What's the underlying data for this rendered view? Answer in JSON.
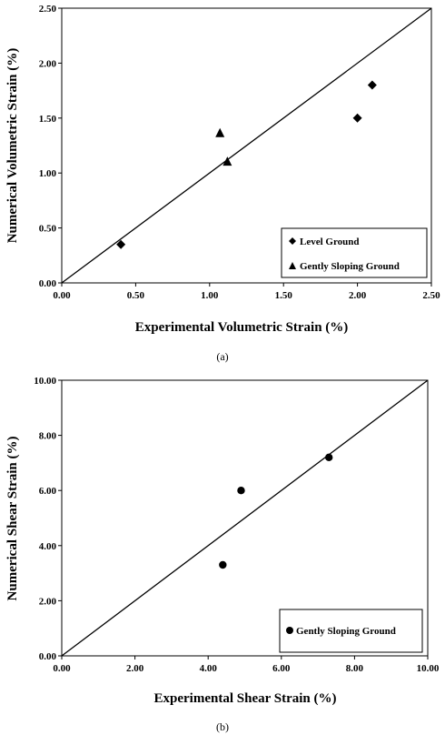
{
  "chart_data": [
    {
      "type": "scatter",
      "caption": "(a)",
      "xlabel": "Experimental Volumetric Strain (%)",
      "ylabel": "Numerical Volumetric Strain (%)",
      "xlim": [
        0,
        2.5
      ],
      "ylim": [
        0,
        2.5
      ],
      "x_ticks": [
        "0.00",
        "0.50",
        "1.00",
        "1.50",
        "2.00",
        "2.50"
      ],
      "y_ticks": [
        "0.00",
        "0.50",
        "1.00",
        "1.50",
        "2.00",
        "2.50"
      ],
      "tick_values": [
        0,
        0.5,
        1.0,
        1.5,
        2.0,
        2.5
      ],
      "reference_line": [
        [
          0,
          0
        ],
        [
          2.5,
          2.5
        ]
      ],
      "grid": false,
      "legend_position": "bottom-right",
      "series": [
        {
          "name": "Level Ground",
          "marker": "diamond",
          "points": [
            [
              0.4,
              0.35
            ],
            [
              2.0,
              1.5
            ],
            [
              2.1,
              1.8
            ]
          ]
        },
        {
          "name": "Gently Sloping Ground",
          "marker": "triangle",
          "points": [
            [
              1.07,
              1.36
            ],
            [
              1.12,
              1.1
            ]
          ]
        }
      ]
    },
    {
      "type": "scatter",
      "caption": "(b)",
      "xlabel": "Experimental Shear Strain (%)",
      "ylabel": "Numerical Shear Strain (%)",
      "xlim": [
        0,
        10
      ],
      "ylim": [
        0,
        10
      ],
      "x_ticks": [
        "0.00",
        "2.00",
        "4.00",
        "6.00",
        "8.00",
        "10.00"
      ],
      "y_ticks": [
        "0.00",
        "2.00",
        "4.00",
        "6.00",
        "8.00",
        "10.00"
      ],
      "tick_values": [
        0,
        2,
        4,
        6,
        8,
        10
      ],
      "reference_line": [
        [
          0,
          0
        ],
        [
          10,
          10
        ]
      ],
      "grid": false,
      "legend_position": "bottom-right",
      "series": [
        {
          "name": "Gently Sloping Ground",
          "marker": "circle",
          "points": [
            [
              4.4,
              3.3
            ],
            [
              4.9,
              6.0
            ],
            [
              7.3,
              7.2
            ]
          ]
        }
      ]
    }
  ]
}
